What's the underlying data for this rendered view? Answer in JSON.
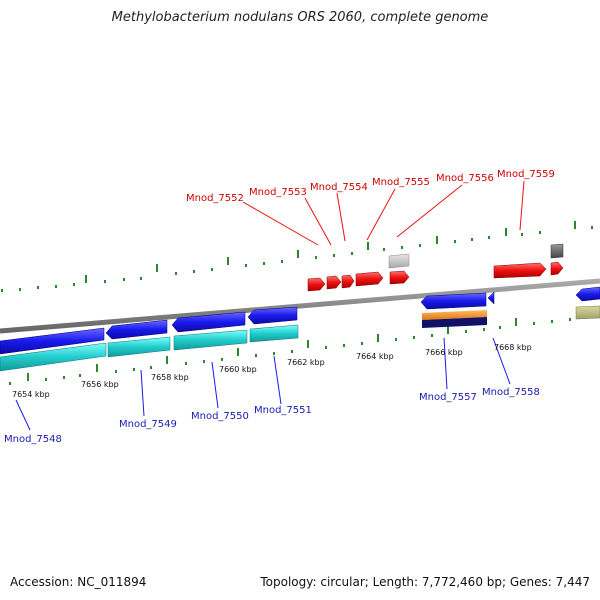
{
  "title": "Methylobacterium nodulans ORS 2060, complete genome",
  "footer": {
    "accession": "Accession: NC_011894",
    "summary": "Topology: circular; Length: 7,772,460 bp; Genes: 7,447"
  },
  "colors": {
    "forward_gene": "#ee1111",
    "reverse_gene": "#1a1aee",
    "reverse_cds": "#22cccc",
    "backbone": "#888888",
    "tick": "#2a8a2a",
    "forward_label": "#cc0000",
    "reverse_label": "#1a1ab0",
    "other_gray": "#bbbbbb",
    "other_dark": "#666666",
    "orange": "#ee8822",
    "navy": "#111166",
    "khaki": "#bbbb88"
  },
  "kbp_labels": [
    "7654 kbp",
    "7656 kbp",
    "7658 kbp",
    "7660 kbp",
    "7662 kbp",
    "7664 kbp",
    "7666 kbp",
    "7668 kbp"
  ],
  "forward_labels": [
    "Mnod_7552",
    "Mnod_7553",
    "Mnod_7554",
    "Mnod_7555",
    "Mnod_7556",
    "Mnod_7559"
  ],
  "reverse_labels": [
    "Mnod_7548",
    "Mnod_7549",
    "Mnod_7550",
    "Mnod_7551",
    "Mnod_7557",
    "Mnod_7558"
  ]
}
